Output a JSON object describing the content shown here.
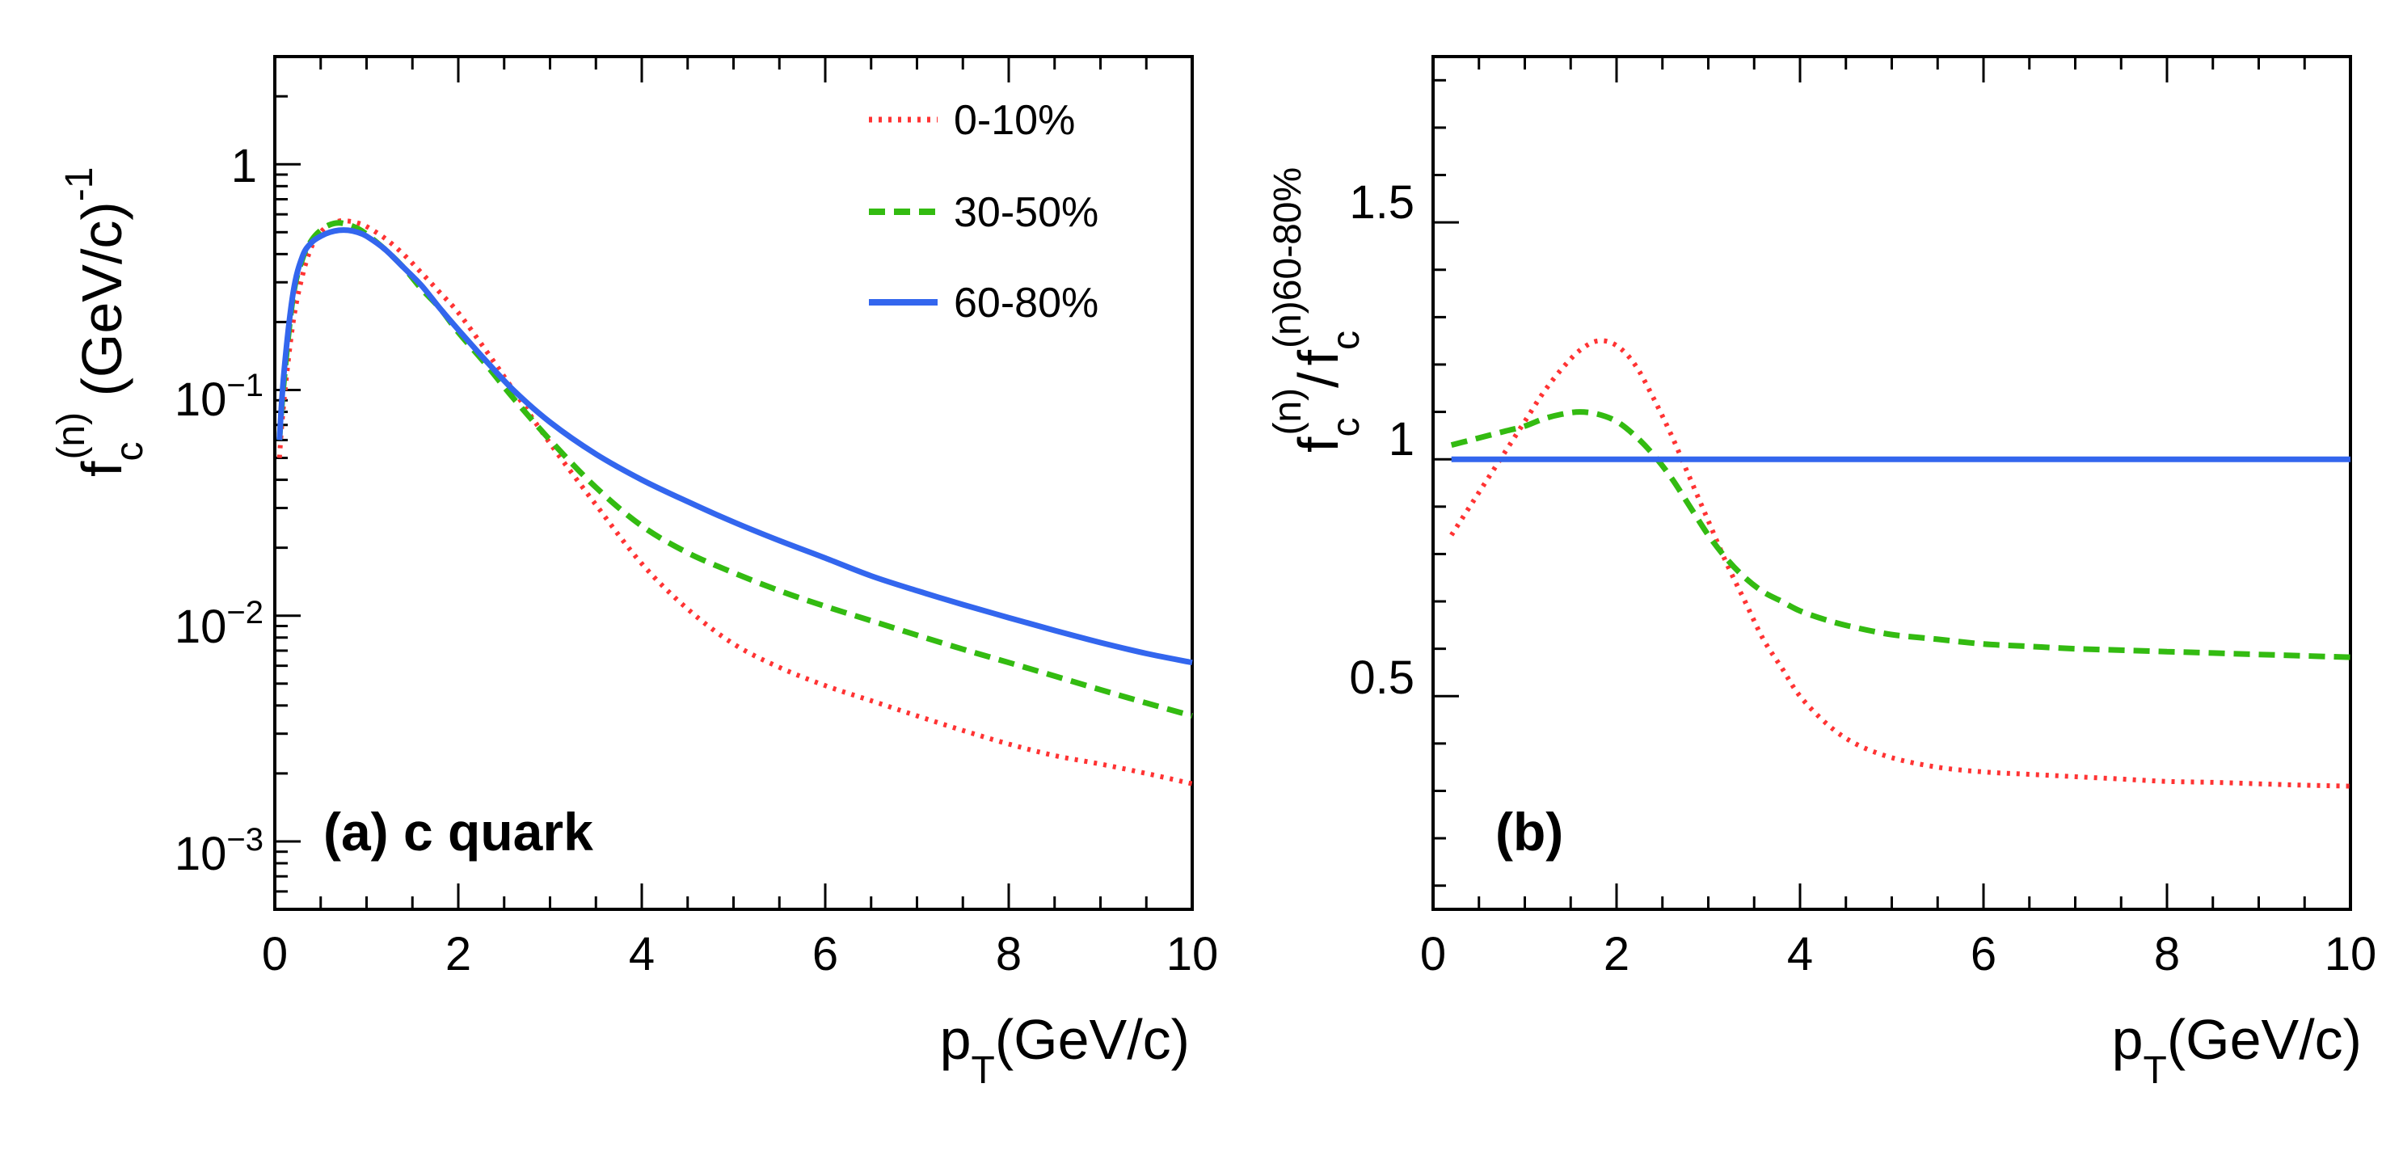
{
  "colors": {
    "series_0_10": "#ff3333",
    "series_30_50": "#33bb11",
    "series_60_80": "#3366ee",
    "axis": "#000000"
  },
  "chart_data": [
    {
      "id": "panel-a",
      "type": "line",
      "panel_label": "(a) c quark",
      "xscale": "linear",
      "yscale": "log",
      "xlim": [
        0,
        10
      ],
      "ylim": [
        0.0005,
        3
      ],
      "x_ticks": [
        0,
        2,
        4,
        6,
        8,
        10
      ],
      "x_tick_labels": [
        "0",
        "2",
        "4",
        "6",
        "8",
        "10"
      ],
      "y_ticks": [
        0.001,
        0.01,
        0.1,
        1
      ],
      "y_tick_labels": [
        {
          "base": "10",
          "exp": "−3"
        },
        {
          "base": "10",
          "exp": "−2"
        },
        {
          "base": "10",
          "exp": "−1"
        },
        {
          "base": "1",
          "exp": ""
        }
      ],
      "xlabel": {
        "main": "p",
        "sub": "T",
        "rest": "(GeV/c)"
      },
      "ylabel": {
        "main": "f",
        "sub": "c",
        "sup": "(n)",
        "rest": " (GeV/c)",
        "rest_sup": "-1"
      },
      "legend_position": "top-right",
      "series": [
        {
          "name": "0-10%",
          "style": "dotted",
          "color_key": "series_0_10",
          "x": [
            0.05,
            0.1,
            0.2,
            0.3,
            0.4,
            0.5,
            0.6,
            0.7,
            0.8,
            0.9,
            1.0,
            1.2,
            1.4,
            1.6,
            1.8,
            2.0,
            2.3,
            2.6,
            3.0,
            3.5,
            4.0,
            4.5,
            5.0,
            5.5,
            6.0,
            6.5,
            7.0,
            7.5,
            8.0,
            8.5,
            9.0,
            9.5,
            10.0
          ],
          "y": [
            0.05,
            0.09,
            0.2,
            0.32,
            0.43,
            0.5,
            0.54,
            0.56,
            0.56,
            0.55,
            0.53,
            0.47,
            0.4,
            0.33,
            0.27,
            0.22,
            0.15,
            0.1,
            0.058,
            0.031,
            0.017,
            0.0107,
            0.0075,
            0.0059,
            0.0049,
            0.0042,
            0.0036,
            0.0031,
            0.0027,
            0.0024,
            0.0022,
            0.002,
            0.0018
          ]
        },
        {
          "name": "30-50%",
          "style": "dashed",
          "color_key": "series_30_50",
          "x": [
            0.05,
            0.1,
            0.2,
            0.3,
            0.4,
            0.5,
            0.6,
            0.7,
            0.8,
            0.9,
            1.0,
            1.2,
            1.4,
            1.6,
            1.8,
            2.0,
            2.3,
            2.6,
            3.0,
            3.5,
            4.0,
            4.5,
            5.0,
            5.5,
            6.0,
            6.5,
            7.0,
            7.5,
            8.0,
            8.5,
            9.0,
            9.5,
            10.0
          ],
          "y": [
            0.06,
            0.11,
            0.26,
            0.38,
            0.46,
            0.51,
            0.54,
            0.55,
            0.54,
            0.52,
            0.49,
            0.42,
            0.35,
            0.28,
            0.23,
            0.18,
            0.13,
            0.092,
            0.06,
            0.037,
            0.025,
            0.019,
            0.0155,
            0.0129,
            0.011,
            0.0095,
            0.0082,
            0.0071,
            0.0062,
            0.0054,
            0.0047,
            0.0041,
            0.0036
          ]
        },
        {
          "name": "60-80%",
          "style": "solid",
          "color_key": "series_60_80",
          "x": [
            0.05,
            0.1,
            0.2,
            0.3,
            0.4,
            0.5,
            0.6,
            0.7,
            0.8,
            0.9,
            1.0,
            1.2,
            1.4,
            1.6,
            1.8,
            2.0,
            2.3,
            2.6,
            3.0,
            3.5,
            4.0,
            4.5,
            5.0,
            5.5,
            6.0,
            6.5,
            7.0,
            7.5,
            8.0,
            8.5,
            9.0,
            9.5,
            10.0
          ],
          "y": [
            0.06,
            0.12,
            0.27,
            0.39,
            0.45,
            0.48,
            0.5,
            0.51,
            0.51,
            0.5,
            0.48,
            0.42,
            0.35,
            0.29,
            0.23,
            0.185,
            0.135,
            0.1,
            0.072,
            0.052,
            0.04,
            0.032,
            0.026,
            0.0215,
            0.018,
            0.015,
            0.0129,
            0.0112,
            0.0098,
            0.0086,
            0.0076,
            0.0068,
            0.0062
          ]
        }
      ]
    },
    {
      "id": "panel-b",
      "type": "line",
      "panel_label": "(b)",
      "xscale": "linear",
      "yscale": "linear",
      "xlim": [
        0,
        10
      ],
      "ylim": [
        0.05,
        1.85
      ],
      "x_ticks": [
        0,
        2,
        4,
        6,
        8,
        10
      ],
      "x_tick_labels": [
        "0",
        "2",
        "4",
        "6",
        "8",
        "10"
      ],
      "y_ticks": [
        0.5,
        1,
        1.5
      ],
      "y_tick_labels": [
        "0.5",
        "1",
        "1.5"
      ],
      "xlabel": {
        "main": "p",
        "sub": "T",
        "rest": "(GeV/c)"
      },
      "ylabel": {
        "num_main": "f",
        "num_sub": "c",
        "num_sup": "(n)",
        "sep": "/",
        "den_main": "f",
        "den_sub": "c",
        "den_sup": "(n)60-80%"
      },
      "series": [
        {
          "name": "0-10%",
          "style": "dotted",
          "color_key": "series_0_10",
          "x": [
            0.2,
            0.4,
            0.6,
            0.8,
            1.0,
            1.2,
            1.4,
            1.6,
            1.8,
            2.0,
            2.2,
            2.4,
            2.6,
            2.8,
            3.0,
            3.2,
            3.4,
            3.6,
            3.8,
            4.0,
            4.3,
            4.6,
            5.0,
            5.5,
            6.0,
            6.5,
            7.0,
            7.5,
            8.0,
            8.5,
            9.0,
            9.5,
            10.0
          ],
          "y": [
            0.84,
            0.9,
            0.96,
            1.02,
            1.08,
            1.14,
            1.19,
            1.23,
            1.25,
            1.24,
            1.2,
            1.13,
            1.05,
            0.96,
            0.87,
            0.78,
            0.7,
            0.62,
            0.56,
            0.5,
            0.44,
            0.4,
            0.37,
            0.35,
            0.34,
            0.335,
            0.33,
            0.325,
            0.32,
            0.318,
            0.315,
            0.312,
            0.31
          ]
        },
        {
          "name": "30-50%",
          "style": "dashed",
          "color_key": "series_30_50",
          "x": [
            0.2,
            0.4,
            0.6,
            0.8,
            1.0,
            1.2,
            1.4,
            1.6,
            1.8,
            2.0,
            2.2,
            2.4,
            2.6,
            2.8,
            3.0,
            3.2,
            3.4,
            3.6,
            3.8,
            4.0,
            4.3,
            4.6,
            5.0,
            5.5,
            6.0,
            6.5,
            7.0,
            7.5,
            8.0,
            8.5,
            9.0,
            9.5,
            10.0
          ],
          "y": [
            1.03,
            1.04,
            1.05,
            1.06,
            1.07,
            1.085,
            1.095,
            1.1,
            1.095,
            1.08,
            1.05,
            1.01,
            0.96,
            0.9,
            0.84,
            0.79,
            0.75,
            0.72,
            0.7,
            0.68,
            0.66,
            0.645,
            0.63,
            0.62,
            0.61,
            0.605,
            0.6,
            0.597,
            0.594,
            0.591,
            0.588,
            0.585,
            0.582
          ]
        },
        {
          "name": "60-80%",
          "style": "solid",
          "color_key": "series_60_80",
          "x": [
            0.2,
            10.0
          ],
          "y": [
            1.0,
            1.0
          ]
        }
      ]
    }
  ]
}
